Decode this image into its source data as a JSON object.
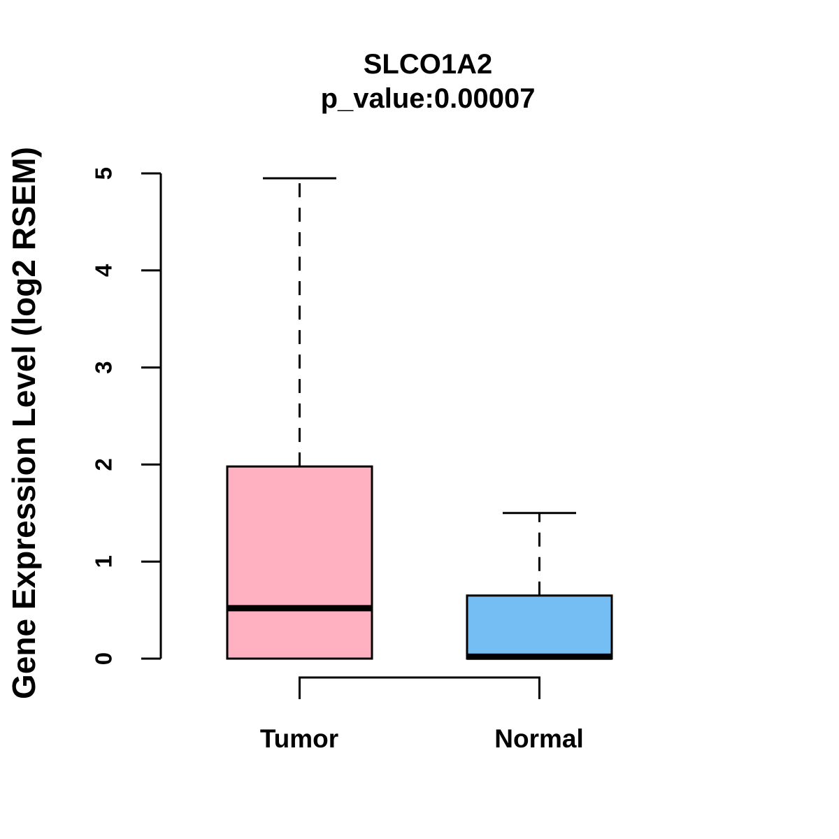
{
  "chart_data": {
    "type": "boxplot",
    "title": "SLCO1A2",
    "subtitle": "p_value:0.00007",
    "xlabel": "",
    "ylabel": "Gene Expression Level (log2 RSEM)",
    "ylim": [
      0,
      5
    ],
    "yticks": [
      0,
      1,
      2,
      3,
      4,
      5
    ],
    "grid": false,
    "legend": "none",
    "categories": [
      "Tumor",
      "Normal"
    ],
    "groups": [
      {
        "label": "Tumor",
        "color": "#FFB0C1",
        "whisker_low": 0,
        "q1": 0,
        "median": 0.52,
        "q3": 1.98,
        "whisker_high": 4.95
      },
      {
        "label": "Normal",
        "color": "#74BEF4",
        "whisker_low": 0,
        "q1": 0,
        "median": 0.02,
        "q3": 0.65,
        "whisker_high": 1.5
      }
    ],
    "significance_bracket": {
      "between": [
        "Tumor",
        "Normal"
      ],
      "annotates": "p_value:0.00007"
    }
  }
}
